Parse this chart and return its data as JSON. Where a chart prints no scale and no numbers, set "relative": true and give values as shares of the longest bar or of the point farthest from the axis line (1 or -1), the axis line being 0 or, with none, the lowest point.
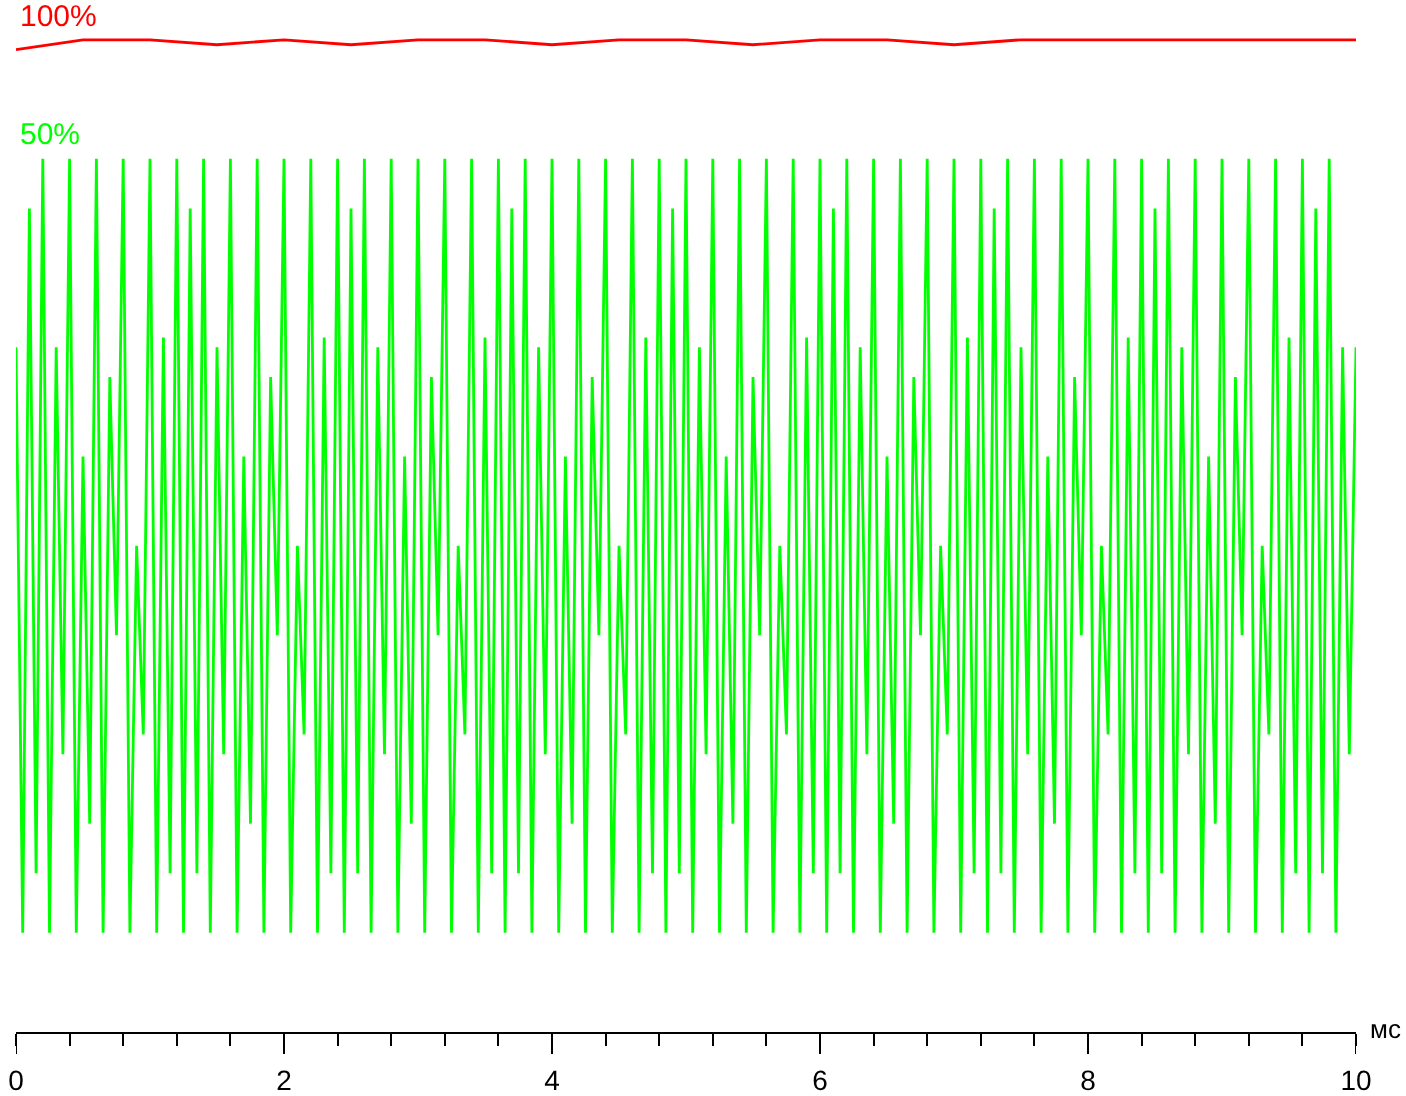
{
  "chart_data": {
    "type": "line",
    "relative": true,
    "xlabel": "мс",
    "xlim": [
      0,
      10
    ],
    "xticks": [
      0,
      {
        "value": 0.4,
        "label": null
      },
      {
        "value": 0.8,
        "label": null
      },
      {
        "value": 1.2,
        "label": null
      },
      {
        "value": 1.6,
        "label": null
      },
      2,
      {
        "value": 2.4,
        "label": null
      },
      {
        "value": 2.8,
        "label": null
      },
      {
        "value": 3.2,
        "label": null
      },
      {
        "value": 3.6,
        "label": null
      },
      4,
      {
        "value": 4.4,
        "label": null
      },
      {
        "value": 4.8,
        "label": null
      },
      {
        "value": 5.2,
        "label": null
      },
      {
        "value": 5.6,
        "label": null
      },
      6,
      {
        "value": 6.4,
        "label": null
      },
      {
        "value": 6.8,
        "label": null
      },
      {
        "value": 7.2,
        "label": null
      },
      {
        "value": 7.6,
        "label": null
      },
      8,
      {
        "value": 8.4,
        "label": null
      },
      {
        "value": 8.8,
        "label": null
      },
      {
        "value": 9.2,
        "label": null
      },
      {
        "value": 9.6,
        "label": null
      },
      10
    ],
    "grid": false,
    "legend": false,
    "marker": "none",
    "line_style": "solid",
    "x": [
      0,
      0.05,
      0.1,
      0.15,
      0.2,
      0.25,
      0.3,
      0.35,
      0.4,
      0.45,
      0.5,
      0.55,
      0.6,
      0.65,
      0.7,
      0.75,
      0.8,
      0.85,
      0.9,
      0.95,
      1,
      1.05,
      1.1,
      1.15,
      1.2,
      1.25,
      1.3,
      1.35,
      1.4,
      1.45,
      1.5,
      1.55,
      1.6,
      1.65,
      1.7,
      1.75,
      1.8,
      1.85,
      1.9,
      1.95,
      2,
      2.05,
      2.1,
      2.15,
      2.2,
      2.25,
      2.3,
      2.35,
      2.4,
      2.45,
      2.5,
      2.55,
      2.6,
      2.65,
      2.7,
      2.75,
      2.8,
      2.85,
      2.9,
      2.95,
      3,
      3.05,
      3.1,
      3.15,
      3.2,
      3.25,
      3.3,
      3.35,
      3.4,
      3.45,
      3.5,
      3.55,
      3.6,
      3.65,
      3.7,
      3.75,
      3.8,
      3.85,
      3.9,
      3.95,
      4,
      4.05,
      4.1,
      4.15,
      4.2,
      4.25,
      4.3,
      4.35,
      4.4,
      4.45,
      4.5,
      4.55,
      4.6,
      4.65,
      4.7,
      4.75,
      4.8,
      4.85,
      4.9,
      4.95,
      5,
      5.05,
      5.1,
      5.15,
      5.2,
      5.25,
      5.3,
      5.35,
      5.4,
      5.45,
      5.5,
      5.55,
      5.6,
      5.65,
      5.7,
      5.75,
      5.8,
      5.85,
      5.9,
      5.95,
      6,
      6.05,
      6.1,
      6.15,
      6.2,
      6.25,
      6.3,
      6.35,
      6.4,
      6.45,
      6.5,
      6.55,
      6.6,
      6.65,
      6.7,
      6.75,
      6.8,
      6.85,
      6.9,
      6.95,
      7,
      7.05,
      7.1,
      7.15,
      7.2,
      7.25,
      7.3,
      7.35,
      7.4,
      7.45,
      7.5,
      7.55,
      7.6,
      7.65,
      7.7,
      7.75,
      7.8,
      7.85,
      7.9,
      7.95,
      8,
      8.05,
      8.1,
      8.15,
      8.2,
      8.25,
      8.3,
      8.35,
      8.4,
      8.45,
      8.5,
      8.55,
      8.6,
      8.65,
      8.7,
      8.75,
      8.8,
      8.85,
      8.9,
      8.95,
      9,
      9.05,
      9.1,
      9.15,
      9.2,
      9.25,
      9.3,
      9.35,
      9.4,
      9.45,
      9.5,
      9.55,
      9.6,
      9.65,
      9.7,
      9.75,
      9.8,
      9.85,
      9.9,
      9.95,
      10
    ],
    "series": [
      {
        "name": "50%",
        "color": "#00ff00",
        "values": [
          0.69,
          0.1,
          0.83,
          0.16,
          0.88,
          0.1,
          0.69,
          0.28,
          0.88,
          0.1,
          0.58,
          0.21,
          0.88,
          0.1,
          0.66,
          0.4,
          0.88,
          0.1,
          0.49,
          0.3,
          0.88,
          0.1,
          0.7,
          0.16,
          0.88,
          0.1,
          0.83,
          0.16,
          0.88,
          0.1,
          0.69,
          0.28,
          0.88,
          0.1,
          0.58,
          0.21,
          0.88,
          0.1,
          0.66,
          0.4,
          0.88,
          0.1,
          0.49,
          0.3,
          0.88,
          0.1,
          0.7,
          0.16,
          0.88,
          0.1,
          0.83,
          0.16,
          0.88,
          0.1,
          0.69,
          0.28,
          0.88,
          0.1,
          0.58,
          0.21,
          0.88,
          0.1,
          0.66,
          0.4,
          0.88,
          0.1,
          0.49,
          0.3,
          0.88,
          0.1,
          0.7,
          0.16,
          0.88,
          0.1,
          0.83,
          0.16,
          0.88,
          0.1,
          0.69,
          0.28,
          0.88,
          0.1,
          0.58,
          0.21,
          0.88,
          0.1,
          0.66,
          0.4,
          0.88,
          0.1,
          0.49,
          0.3,
          0.88,
          0.1,
          0.7,
          0.16,
          0.88,
          0.1,
          0.83,
          0.16,
          0.88,
          0.1,
          0.69,
          0.28,
          0.88,
          0.1,
          0.58,
          0.21,
          0.88,
          0.1,
          0.66,
          0.4,
          0.88,
          0.1,
          0.49,
          0.3,
          0.88,
          0.1,
          0.7,
          0.16,
          0.88,
          0.1,
          0.83,
          0.16,
          0.88,
          0.1,
          0.69,
          0.28,
          0.88,
          0.1,
          0.58,
          0.21,
          0.88,
          0.1,
          0.66,
          0.4,
          0.88,
          0.1,
          0.49,
          0.3,
          0.88,
          0.1,
          0.7,
          0.16,
          0.88,
          0.1,
          0.83,
          0.16,
          0.88,
          0.1,
          0.69,
          0.28,
          0.88,
          0.1,
          0.58,
          0.21,
          0.88,
          0.1,
          0.66,
          0.4,
          0.88,
          0.1,
          0.49,
          0.3,
          0.88,
          0.1,
          0.7,
          0.16,
          0.88,
          0.1,
          0.83,
          0.16,
          0.88,
          0.1,
          0.69,
          0.28,
          0.88,
          0.1,
          0.58,
          0.21,
          0.88,
          0.1,
          0.66,
          0.4,
          0.88,
          0.1,
          0.49,
          0.3,
          0.88,
          0.1,
          0.7,
          0.16,
          0.88,
          0.1,
          0.83,
          0.16,
          0.88,
          0.1,
          0.69,
          0.28,
          0.69
        ]
      },
      {
        "name": "100%",
        "color": "#ff0000",
        "x": [
          0,
          0.5,
          1,
          1.5,
          2,
          2.5,
          3,
          3.5,
          4,
          4.5,
          5,
          5.5,
          6,
          6.5,
          7,
          7.5,
          8,
          8.5,
          9,
          9.5,
          10
        ],
        "values": [
          0.99,
          1,
          1,
          0.995,
          1,
          0.995,
          1,
          1,
          0.995,
          1,
          1,
          0.995,
          1,
          1,
          0.995,
          1,
          1,
          1,
          1,
          1,
          1
        ]
      }
    ]
  }
}
